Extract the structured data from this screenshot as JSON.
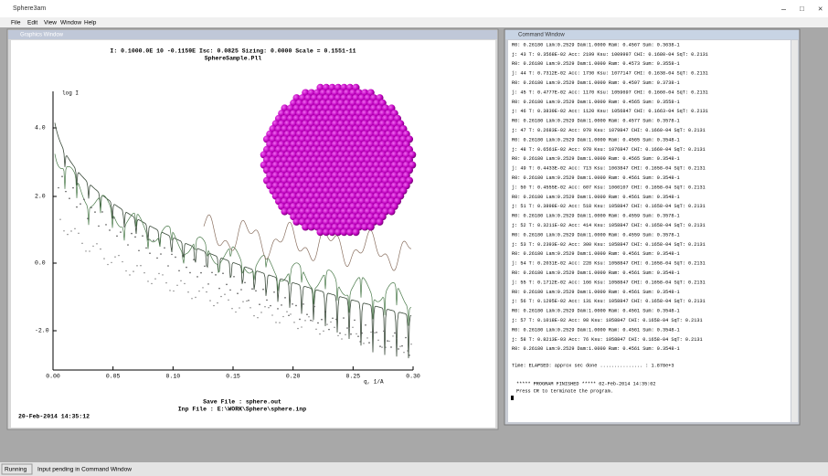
{
  "window": {
    "title": "Sphere3am",
    "menu": [
      "File",
      "Edit",
      "View",
      "Window",
      "Help"
    ]
  },
  "plot_window": {
    "title": "Graphics Window",
    "header": [
      "I: 0.1000.0E 10 -0.1159E  Isc: 0.0825 Sizing: 0.0000 Scale = 0.1551-11",
      "SphereSample.Pll"
    ],
    "y_axis_label": "log I",
    "x_axis_label": "q, 1/A",
    "y_tick_labels": [
      "4.0",
      "2.0",
      "0.0",
      "-2.0"
    ],
    "x_tick_labels": [
      "0.00",
      "0.05",
      "0.10",
      "0.15",
      "0.20",
      "0.25",
      "0.30"
    ],
    "footer": [
      "Save File :  sphere.out",
      "Inp File :  E:\\WORK\\Sphere\\sphere.inp"
    ],
    "timestamp": "20-Feb-2014   14:35:12"
  },
  "command_window": {
    "title": "Command Window",
    "lines": [
      "R0: 0.26180 Lam:0.2529 Dam:1.0000 Ram:  0.4567 Sum: 0.3638-1",
      "j: 43 T: 0.3568E-02 Acc:  2199 Ksu:  1009997 CHI:  0.1680-04 SqT: 0.2131",
      "R0: 0.26180 Lam:0.2529 Dam:1.0000 Ram:  0.4573 Sum: 0.3558-1",
      "j: 44 T: 0.7312E-02 Acc:  1730 Ksu:  1077147 CHI:  0.1638-04 SqT: 0.2131",
      "R0: 0.26180 Lam:0.2529 Dam:1.0000 Ram:  0.4597 Sum: 0.3738-1",
      "j: 45 T: 0.4777E-02 Acc:  1170 Ksu:  1059697 CHI:  0.1660-04 SqT: 0.2131",
      "R0: 0.26180 Lam:0.2529 Dam:1.0000 Ram:  0.4565 Sum: 0.3558-1",
      "j: 46 T: 0.3839E-02 Acc:  1120 Ksu:  1056847 CHI:  0.1663-04 SqT: 0.2131",
      "R0: 0.26180 Lam:0.2529 Dam:1.0000 Ram:  0.4577 Sum: 0.3578-1",
      "j: 47 T: 0.2683E-02 Acc:   970 Ksu:  1079847 CHI:  0.1660-04 SqT: 0.2131",
      "R0: 0.26180 Lam:0.2529 Dam:1.0000 Ram:  0.4565 Sum: 0.3548-1",
      "j: 48 T: 0.6561E-02 Acc:   978 Ksu:  1076847 CHI:  0.1660-04 SqT: 0.2131",
      "R0: 0.26180 Lam:0.2529 Dam:1.0000 Ram:  0.4565 Sum: 0.3548-1",
      "j: 49 T: 0.4433E-02 Acc:   713 Ksu:  1063847 CHI:  0.1658-04 SqT: 0.2131",
      "R0: 0.26180 Lam:0.2529 Dam:1.0000 Ram:  0.4561 Sum: 0.3548-1",
      "j: 50 T: 0.4555E-02 Acc:   607 Ksu:  1060107 CHI:  0.1658-04 SqT: 0.2131",
      "R0: 0.26180 Lam:0.2529 Dam:1.0000 Ram:  0.4561 Sum: 0.3548-1",
      "j: 51 T: 0.3898E-02 Acc:   518 Ksu:  1058847 CHI:  0.1658-04 SqT: 0.2131",
      "R0: 0.26180 Lam:0.2529 Dam:1.0000 Ram:  0.4559 Sum: 0.3578-1",
      "j: 52 T: 0.3211E-02 Acc:   414 Ksu:  1058847 CHI:  0.1658-04 SqT: 0.2131",
      "R0: 0.26180 Lam:0.2529 Dam:1.0000 Ram:  0.4559 Sum: 0.3578-1",
      "j: 53 T: 0.2393E-02 Acc:   300 Ksu:  1058847 CHI:  0.1658-04 SqT: 0.2131",
      "R0: 0.26180 Lam:0.2529 Dam:1.0000 Ram:  0.4561 Sum: 0.3548-1",
      "j: 54 T: 0.2031E-02 Acc:   228 Ksu:  1058847 CHI:  0.1658-04 SqT: 0.2131",
      "R0: 0.26180 Lam:0.2529 Dam:1.0000 Ram:  0.4561 Sum: 0.3548-1",
      "j: 55 T: 0.1712E-02 Acc:   166 Ksu:  1058847 CHI:  0.1658-04 SqT: 0.2131",
      "R0: 0.26180 Lam:0.2529 Dam:1.0000 Ram:  0.4561 Sum: 0.3548-1",
      "j: 56 T: 0.1295E-02 Acc:   131 Ksu:  1058847 CHI:  0.1658-04 SqT: 0.2131",
      "R0: 0.26180 Lam:0.2529 Dam:1.0000 Ram:  0.4561 Sum: 0.3548-1",
      "j: 57 T: 0.1018E-02 Acc:    98 Ksu:  1058847 CHI:  0.1658-04 SqT: 0.2131",
      "R0: 0.26180 Lam:0.2529 Dam:1.0000 Ram:  0.4561 Sum: 0.3548-1",
      "j: 58 T: 0.8213E-03 Acc:    76 Ksu:  1058847 CHI:  0.1658-04 SqT: 0.2131",
      "R0: 0.26180 Lam:0.2529 Dam:1.0000 Ram:  0.4561 Sum: 0.3548-1"
    ],
    "elapsed": "Time: ELAPSED: approx sec done  ............... : 1.878e+3",
    "finished": "***** PROGRAM FINISHED *****   02-Feb-2014   14:35:02",
    "prompt": "Press CR to terminate the program."
  },
  "status_bar": {
    "left": "Running",
    "right": "Input pending in Command Window"
  }
}
